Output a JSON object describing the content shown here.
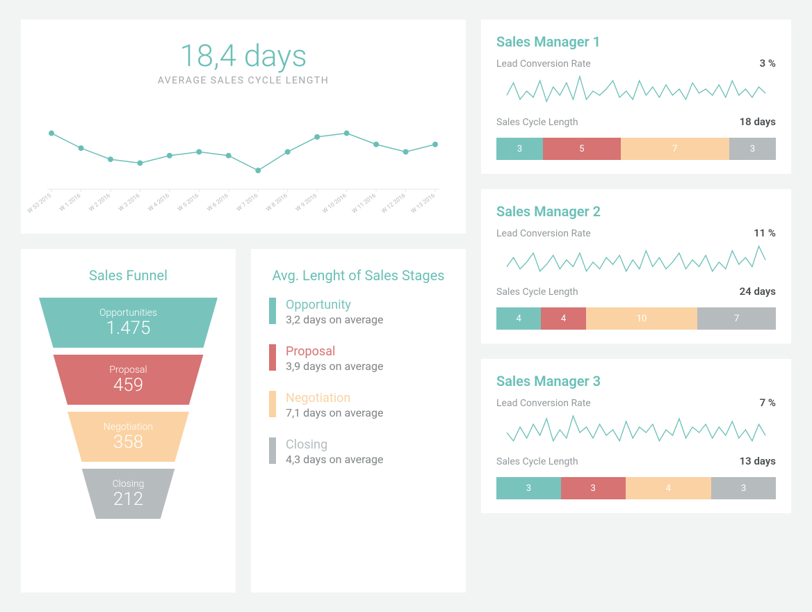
{
  "colors": {
    "teal": "#78c4bd",
    "teal_line": "#69bfb7",
    "red": "#d77373",
    "peach": "#fbd2a3",
    "gray": "#b6bbbe",
    "text_muted": "#93989b",
    "text_dark": "#4a4e50",
    "axis": "#e4e6e7",
    "background": "#f2f3f3",
    "card_bg": "#ffffff"
  },
  "hero": {
    "value": "18,4 days",
    "subtitle": "AVERAGE SALES CYCLE LENGTH",
    "chart": {
      "type": "line",
      "color": "#69bfb7",
      "marker": "circle",
      "marker_size": 4,
      "line_width": 1.5,
      "y_range": [
        10,
        32
      ],
      "x_labels": [
        "W 53 2015",
        "W 1 2016",
        "W 2 2016",
        "W 3 2016",
        "W 4 2016",
        "W 5 2016",
        "W 6 2016",
        "W 7 2016",
        "W 8 2016",
        "W 9 2016",
        "W 10 2016",
        "W 11 2016",
        "W 12 2016",
        "W 13 2016"
      ],
      "values": [
        25,
        21,
        18,
        17,
        19,
        20,
        19,
        15,
        20,
        24,
        25,
        22,
        20,
        22
      ]
    }
  },
  "funnel": {
    "title": "Sales Funnel",
    "stages": [
      {
        "label": "Opportunities",
        "value": "1.475",
        "color": "#78c4bd",
        "width_pct": 100
      },
      {
        "label": "Proposal",
        "value": "459",
        "color": "#d77373",
        "width_pct": 84
      },
      {
        "label": "Negotiation",
        "value": "358",
        "color": "#fbd2a3",
        "width_pct": 68
      },
      {
        "label": "Closing",
        "value": "212",
        "color": "#b6bbbe",
        "width_pct": 52
      }
    ]
  },
  "stages_avg": {
    "title": "Avg. Lenght of Sales Stages",
    "items": [
      {
        "name": "Opportunity",
        "avg": "3,2 days on average",
        "color": "#78c4bd"
      },
      {
        "name": "Proposal",
        "avg": "3,9 days on average",
        "color": "#d77373"
      },
      {
        "name": "Negotiation",
        "avg": "7,1 days on average",
        "color": "#fbd2a3"
      },
      {
        "name": "Closing",
        "avg": "4,3 days on average",
        "color": "#b6bbbe"
      }
    ]
  },
  "managers": [
    {
      "title": "Sales Manager 1",
      "conv_label": "Lead Conversion Rate",
      "conv_value": "3 %",
      "cycle_label": "Sales Cycle Length",
      "cycle_value": "18 days",
      "spark": {
        "color": "#69bfb7",
        "values": [
          20,
          26,
          18,
          22,
          19,
          27,
          17,
          24,
          20,
          26,
          18,
          29,
          18,
          22,
          20,
          23,
          27,
          19,
          22,
          18,
          27,
          20,
          24,
          19,
          25,
          20,
          23,
          18,
          26,
          21,
          23,
          20,
          25,
          19,
          27,
          20,
          23,
          19,
          24,
          21
        ]
      },
      "bar": [
        {
          "v": "3",
          "color": "#78c4bd",
          "w": 3
        },
        {
          "v": "5",
          "color": "#d77373",
          "w": 5
        },
        {
          "v": "7",
          "color": "#fbd2a3",
          "w": 7
        },
        {
          "v": "3",
          "color": "#b6bbbe",
          "w": 3
        }
      ]
    },
    {
      "title": "Sales Manager 2",
      "conv_label": "Lead Conversion Rate",
      "conv_value": "11 %",
      "cycle_label": "Sales Cycle Length",
      "cycle_value": "24 days",
      "spark": {
        "color": "#69bfb7",
        "values": [
          21,
          25,
          20,
          23,
          27,
          19,
          22,
          26,
          20,
          24,
          21,
          27,
          19,
          23,
          20,
          25,
          22,
          26,
          19,
          24,
          20,
          28,
          21,
          25,
          20,
          23,
          27,
          20,
          24,
          21,
          26,
          19,
          23,
          20,
          28,
          22,
          25,
          21,
          30,
          24
        ]
      },
      "bar": [
        {
          "v": "4",
          "color": "#78c4bd",
          "w": 4
        },
        {
          "v": "4",
          "color": "#d77373",
          "w": 4
        },
        {
          "v": "10",
          "color": "#fbd2a3",
          "w": 10
        },
        {
          "v": "7",
          "color": "#b6bbbe",
          "w": 7
        }
      ]
    },
    {
      "title": "Sales Manager 3",
      "conv_label": "Lead Conversion Rate",
      "conv_value": "7 %",
      "cycle_label": "Sales Cycle Length",
      "cycle_value": "13 days",
      "spark": {
        "color": "#69bfb7",
        "values": [
          22,
          19,
          24,
          20,
          25,
          21,
          27,
          19,
          23,
          20,
          28,
          22,
          24,
          20,
          25,
          21,
          23,
          19,
          26,
          20,
          24,
          22,
          25,
          19,
          23,
          21,
          27,
          20,
          24,
          22,
          25,
          20,
          24,
          21,
          26,
          20,
          23,
          19,
          25,
          21
        ]
      },
      "bar": [
        {
          "v": "3",
          "color": "#78c4bd",
          "w": 3
        },
        {
          "v": "3",
          "color": "#d77373",
          "w": 3
        },
        {
          "v": "4",
          "color": "#fbd2a3",
          "w": 4
        },
        {
          "v": "3",
          "color": "#b6bbbe",
          "w": 3
        }
      ]
    }
  ]
}
